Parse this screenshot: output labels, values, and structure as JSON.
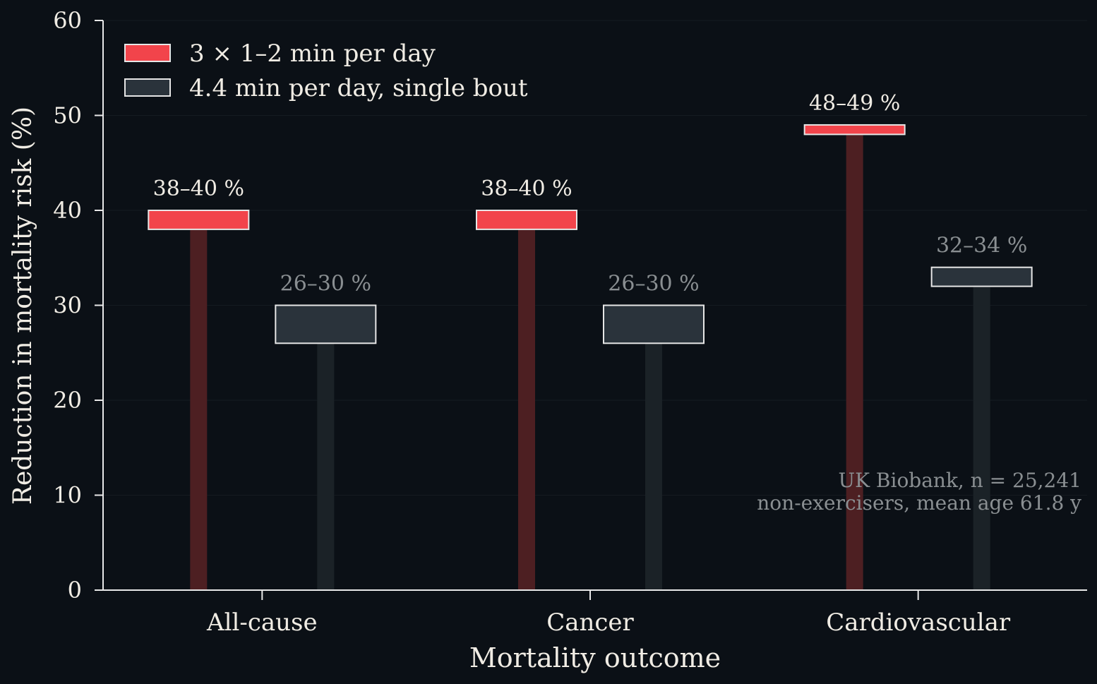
{
  "chart_data": {
    "type": "bar",
    "xlabel": "Mortality outcome",
    "ylabel": "Reduction in mortality risk (%)",
    "ylim": [
      0,
      60
    ],
    "yticks": [
      0,
      10,
      20,
      30,
      40,
      50,
      60
    ],
    "grid": true,
    "legend_position": "top-left",
    "categories": [
      "All-cause",
      "Cancer",
      "Cardiovascular"
    ],
    "series": [
      {
        "name": "3 × 1–2 min per day",
        "color": "#f2444b",
        "stem_color": "#4d1f22",
        "ranges": [
          [
            38,
            40
          ],
          [
            38,
            40
          ],
          [
            48,
            49
          ]
        ],
        "labels": [
          "38–40 %",
          "38–40 %",
          "48–49 %"
        ],
        "label_color": "#f0ece4"
      },
      {
        "name": "4.4 min per day, single bout",
        "color": "#2a333b",
        "stem_color": "#1b2227",
        "ranges": [
          [
            26,
            30
          ],
          [
            26,
            30
          ],
          [
            32,
            34
          ]
        ],
        "labels": [
          "26–30 %",
          "26–30 %",
          "32–34 %"
        ],
        "label_color": "#8a8f92"
      }
    ],
    "annotation": [
      "UK Biobank, n = 25,241",
      "non-exercisers, mean age 61.8 y"
    ]
  }
}
